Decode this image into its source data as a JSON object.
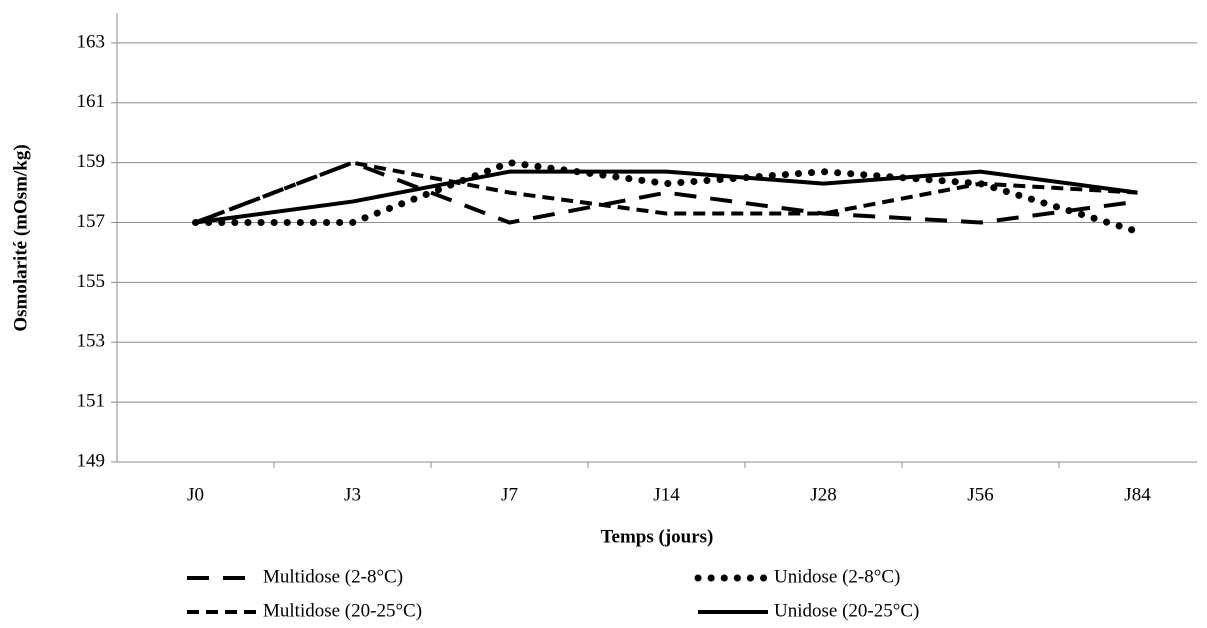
{
  "chart_data": {
    "type": "line",
    "x_label": "Temps (jours)",
    "y_label": "Osmolarité (mOsm/kg)",
    "categories": [
      "J0",
      "J3",
      "J7",
      "J14",
      "J28",
      "J56",
      "J84"
    ],
    "series": [
      {
        "name": "Multidose (2-8°C)",
        "color": "#000000",
        "dash": "long-dash",
        "values": [
          157,
          159,
          157,
          158,
          157.3,
          157,
          157.7
        ]
      },
      {
        "name": "Unidose (2-8°C)",
        "color": "#000000",
        "dash": "dot",
        "values": [
          157,
          157,
          159,
          158.3,
          158.7,
          158.3,
          156.7
        ]
      },
      {
        "name": "Multidose (20-25°C)",
        "color": "#000000",
        "dash": "short-dash",
        "values": [
          157,
          159,
          158,
          157.3,
          157.3,
          158.3,
          158
        ]
      },
      {
        "name": "Unidose (20-25°C)",
        "color": "#000000",
        "dash": "solid",
        "values": [
          157,
          157.7,
          158.7,
          158.7,
          158.3,
          158.7,
          158
        ]
      }
    ],
    "ylim": [
      149,
      164
    ],
    "yticks": [
      149,
      151,
      153,
      155,
      157,
      159,
      161,
      163
    ],
    "grid": true,
    "legend": "bottom"
  }
}
